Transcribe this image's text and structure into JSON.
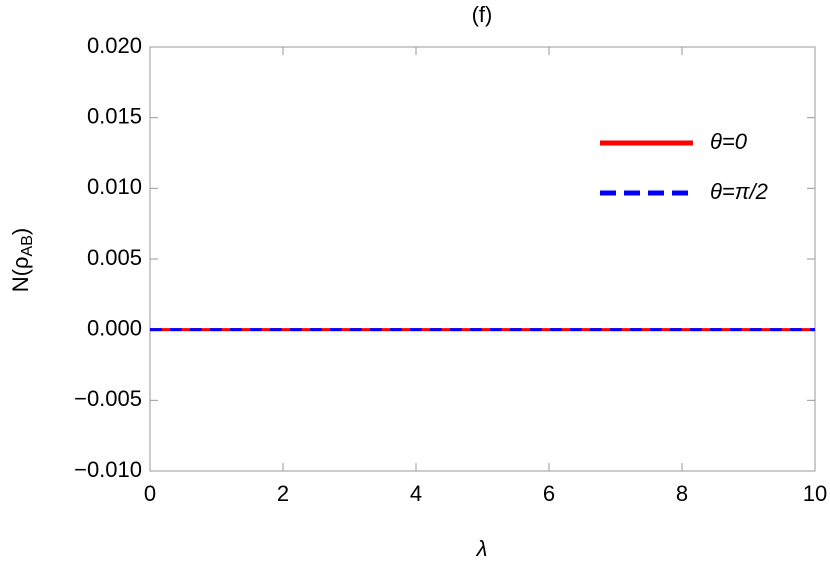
{
  "chart_data": {
    "type": "line",
    "title": "(f)",
    "x_label": "λ",
    "y_label": [
      "N(ρ",
      "AB",
      ")"
    ],
    "x": [
      0,
      10
    ],
    "series": [
      {
        "name": "θ=0",
        "color": "#ff0000",
        "dash": false,
        "values": [
          0,
          0
        ]
      },
      {
        "name": "θ=π/2",
        "color": "#0000ff",
        "dash": true,
        "values": [
          0,
          0
        ]
      }
    ],
    "xlim": [
      0,
      10
    ],
    "xticks": [
      0,
      2,
      4,
      6,
      8,
      10
    ],
    "ylim": [
      -0.01,
      0.02
    ],
    "yticks": [
      {
        "value": -0.01,
        "label": "−0.010"
      },
      {
        "value": -0.005,
        "label": "−0.005"
      },
      {
        "value": 0,
        "label": "0.000"
      },
      {
        "value": 0.005,
        "label": "0.005"
      },
      {
        "value": 0.01,
        "label": "0.010"
      },
      {
        "value": 0.015,
        "label": "0.015"
      },
      {
        "value": 0.02,
        "label": "0.020"
      }
    ],
    "legend": "upper-right"
  }
}
